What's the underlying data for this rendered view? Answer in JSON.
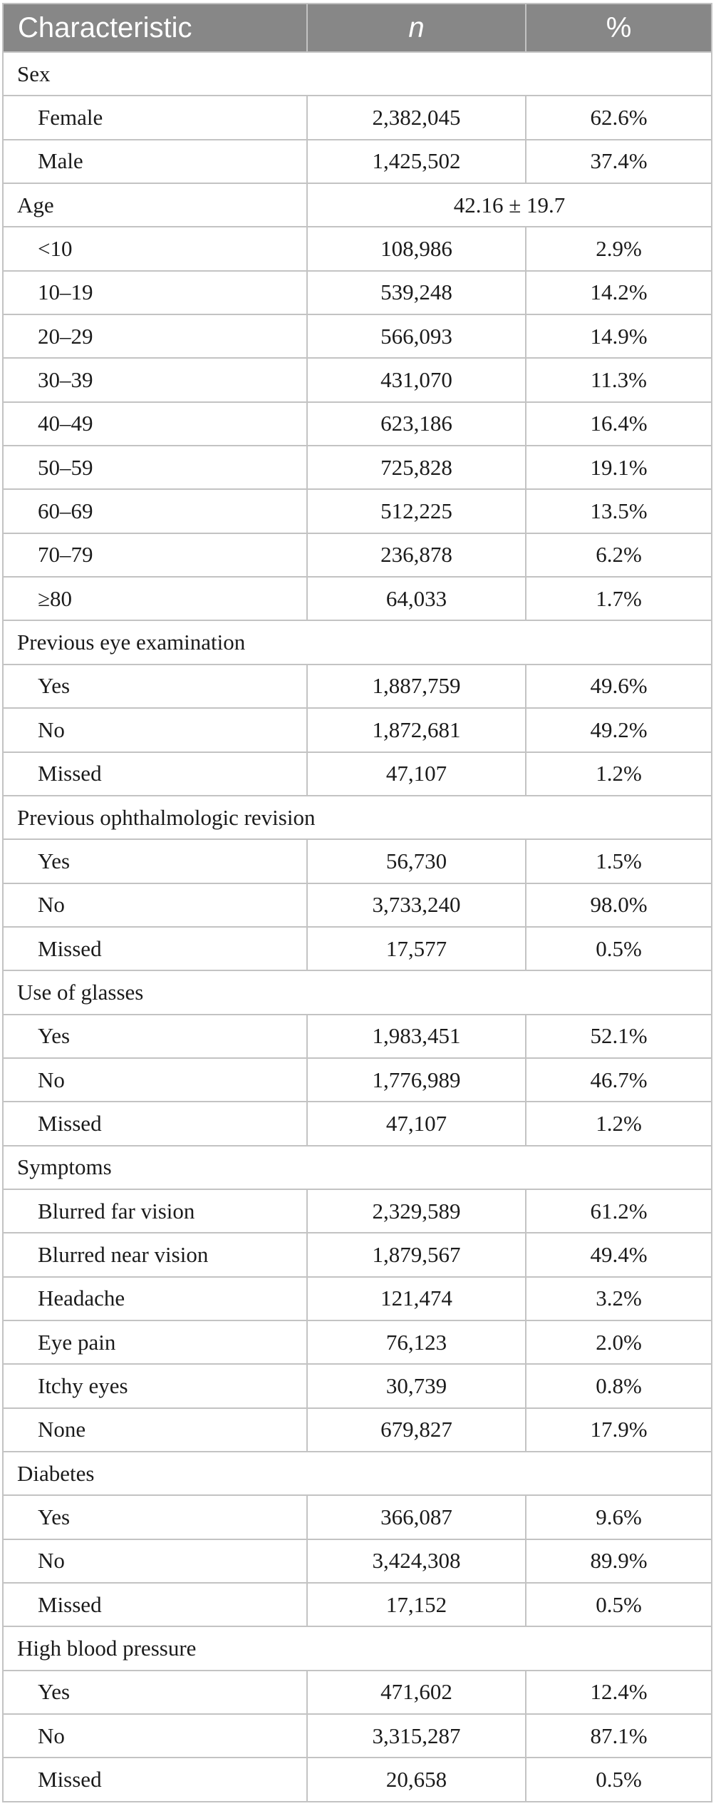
{
  "header": {
    "characteristic": "Characteristic",
    "n": "n",
    "percent": "%"
  },
  "colors": {
    "header_bg": "#878787",
    "header_text": "#ffffff",
    "border": "#c3c3c3",
    "body_text": "#1b1b1b",
    "page_bg": "#ffffff"
  },
  "rows": [
    {
      "type": "section",
      "label": "Sex"
    },
    {
      "type": "data",
      "label": "Female",
      "n": "2,382,045",
      "pct": "62.6%"
    },
    {
      "type": "data",
      "label": "Male",
      "n": "1,425,502",
      "pct": "37.4%"
    },
    {
      "type": "merged",
      "label": "Age",
      "value": "42.16 ± 19.7"
    },
    {
      "type": "data",
      "label": "<10",
      "n": "108,986",
      "pct": "2.9%"
    },
    {
      "type": "data",
      "label": "10–19",
      "n": "539,248",
      "pct": "14.2%"
    },
    {
      "type": "data",
      "label": "20–29",
      "n": "566,093",
      "pct": "14.9%"
    },
    {
      "type": "data",
      "label": "30–39",
      "n": "431,070",
      "pct": "11.3%"
    },
    {
      "type": "data",
      "label": "40–49",
      "n": "623,186",
      "pct": "16.4%"
    },
    {
      "type": "data",
      "label": "50–59",
      "n": "725,828",
      "pct": "19.1%"
    },
    {
      "type": "data",
      "label": "60–69",
      "n": "512,225",
      "pct": "13.5%"
    },
    {
      "type": "data",
      "label": "70–79",
      "n": "236,878",
      "pct": "6.2%"
    },
    {
      "type": "data",
      "label": "≥80",
      "n": "64,033",
      "pct": "1.7%"
    },
    {
      "type": "section",
      "label": "Previous eye examination"
    },
    {
      "type": "data",
      "label": "Yes",
      "n": "1,887,759",
      "pct": "49.6%"
    },
    {
      "type": "data",
      "label": "No",
      "n": "1,872,681",
      "pct": "49.2%"
    },
    {
      "type": "data",
      "label": "Missed",
      "n": "47,107",
      "pct": "1.2%"
    },
    {
      "type": "section",
      "label": "Previous ophthalmologic revision"
    },
    {
      "type": "data",
      "label": "Yes",
      "n": "56,730",
      "pct": "1.5%"
    },
    {
      "type": "data",
      "label": "No",
      "n": "3,733,240",
      "pct": "98.0%"
    },
    {
      "type": "data",
      "label": "Missed",
      "n": "17,577",
      "pct": "0.5%"
    },
    {
      "type": "section",
      "label": "Use of glasses"
    },
    {
      "type": "data",
      "label": "Yes",
      "n": "1,983,451",
      "pct": "52.1%"
    },
    {
      "type": "data",
      "label": "No",
      "n": "1,776,989",
      "pct": "46.7%"
    },
    {
      "type": "data",
      "label": "Missed",
      "n": "47,107",
      "pct": "1.2%"
    },
    {
      "type": "section",
      "label": "Symptoms"
    },
    {
      "type": "data",
      "label": "Blurred far vision",
      "n": "2,329,589",
      "pct": "61.2%"
    },
    {
      "type": "data",
      "label": "Blurred near vision",
      "n": "1,879,567",
      "pct": "49.4%"
    },
    {
      "type": "data",
      "label": "Headache",
      "n": "121,474",
      "pct": "3.2%"
    },
    {
      "type": "data",
      "label": "Eye pain",
      "n": "76,123",
      "pct": "2.0%"
    },
    {
      "type": "data",
      "label": "Itchy eyes",
      "n": "30,739",
      "pct": "0.8%"
    },
    {
      "type": "data",
      "label": "None",
      "n": "679,827",
      "pct": "17.9%"
    },
    {
      "type": "section",
      "label": "Diabetes"
    },
    {
      "type": "data",
      "label": "Yes",
      "n": "366,087",
      "pct": "9.6%"
    },
    {
      "type": "data",
      "label": "No",
      "n": "3,424,308",
      "pct": "89.9%"
    },
    {
      "type": "data",
      "label": "Missed",
      "n": "17,152",
      "pct": "0.5%"
    },
    {
      "type": "section",
      "label": "High blood pressure"
    },
    {
      "type": "data",
      "label": "Yes",
      "n": "471,602",
      "pct": "12.4%"
    },
    {
      "type": "data",
      "label": "No",
      "n": "3,315,287",
      "pct": "87.1%"
    },
    {
      "type": "data",
      "label": "Missed",
      "n": "20,658",
      "pct": "0.5%"
    }
  ]
}
